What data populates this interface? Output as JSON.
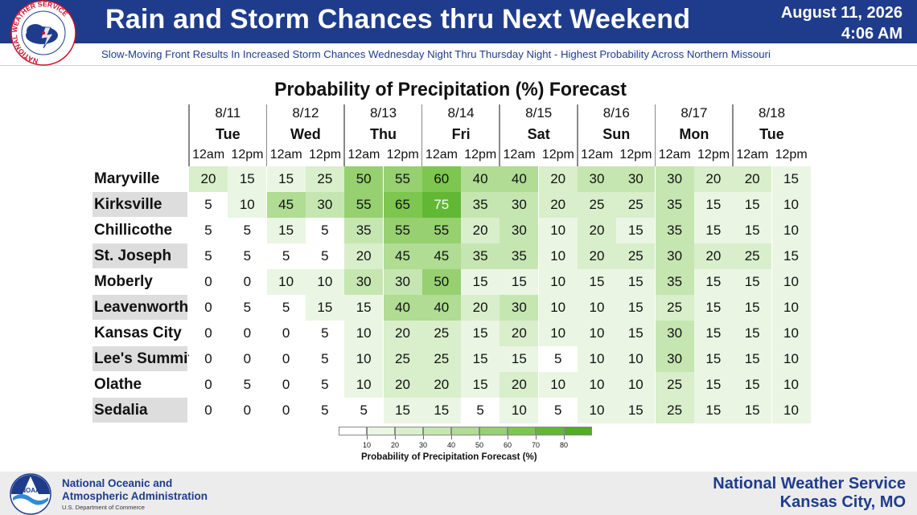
{
  "header": {
    "title": "Rain and Storm Chances thru Next Weekend",
    "date": "August 11, 2026",
    "time": "4:06 AM",
    "subtitle": "Slow-Moving Front Results In Increased Storm Chances Wednesday Night Thru Thursday Night - Highest Probability Across Northern Missouri"
  },
  "logos": {
    "nws_ring_text": "NATIONAL WEATHER SERVICE",
    "noaa_badge": "NOAA"
  },
  "chart_data": {
    "type": "table",
    "title": "Probability of Precipitation (%) Forecast",
    "columns": [
      {
        "date": "8/11",
        "day": "Tue"
      },
      {
        "date": "8/12",
        "day": "Wed"
      },
      {
        "date": "8/13",
        "day": "Thu"
      },
      {
        "date": "8/14",
        "day": "Fri"
      },
      {
        "date": "8/15",
        "day": "Sat"
      },
      {
        "date": "8/16",
        "day": "Sun"
      },
      {
        "date": "8/17",
        "day": "Mon"
      },
      {
        "date": "8/18",
        "day": "Tue"
      }
    ],
    "times": [
      "12am",
      "12pm"
    ],
    "rows": [
      {
        "name": "Maryville",
        "values": [
          20,
          15,
          15,
          25,
          50,
          55,
          60,
          40,
          40,
          20,
          30,
          30,
          30,
          20,
          20,
          15
        ]
      },
      {
        "name": "Kirksville",
        "values": [
          5,
          10,
          45,
          30,
          55,
          65,
          75,
          35,
          30,
          20,
          25,
          25,
          35,
          15,
          15,
          10
        ]
      },
      {
        "name": "Chillicothe",
        "values": [
          5,
          5,
          15,
          5,
          35,
          55,
          55,
          20,
          30,
          10,
          20,
          15,
          35,
          15,
          15,
          10
        ]
      },
      {
        "name": "St. Joseph",
        "values": [
          5,
          5,
          5,
          5,
          20,
          45,
          45,
          35,
          35,
          10,
          20,
          25,
          30,
          20,
          25,
          15
        ]
      },
      {
        "name": "Moberly",
        "values": [
          0,
          0,
          10,
          10,
          30,
          30,
          50,
          15,
          15,
          10,
          15,
          15,
          35,
          15,
          15,
          10
        ]
      },
      {
        "name": "Leavenworth",
        "values": [
          0,
          5,
          5,
          15,
          15,
          40,
          40,
          20,
          30,
          10,
          10,
          15,
          25,
          15,
          15,
          10
        ]
      },
      {
        "name": "Kansas City",
        "values": [
          0,
          0,
          0,
          5,
          10,
          20,
          25,
          15,
          20,
          10,
          10,
          15,
          30,
          15,
          15,
          10
        ]
      },
      {
        "name": "Lee's Summit",
        "values": [
          0,
          0,
          0,
          5,
          10,
          25,
          25,
          15,
          15,
          5,
          10,
          10,
          30,
          15,
          15,
          10
        ]
      },
      {
        "name": "Olathe",
        "values": [
          0,
          5,
          0,
          5,
          10,
          20,
          20,
          15,
          20,
          10,
          10,
          10,
          25,
          15,
          15,
          10
        ]
      },
      {
        "name": "Sedalia",
        "values": [
          0,
          0,
          0,
          5,
          5,
          15,
          15,
          5,
          10,
          5,
          10,
          15,
          25,
          15,
          15,
          10
        ]
      }
    ],
    "scale": {
      "label": "Probability of Precipitation Forecast (%)",
      "breaks": [
        10,
        20,
        30,
        40,
        50,
        60,
        70,
        80
      ],
      "colors": [
        "#ffffff",
        "#eaf6e3",
        "#d9eecb",
        "#c6e6b1",
        "#b0dc93",
        "#96d070",
        "#7dc64f",
        "#62b834",
        "#4fae22"
      ]
    }
  },
  "footer": {
    "agency_line1": "National Oceanic and",
    "agency_line2": "Atmospheric Administration",
    "agency_sub": "U.S. Department of Commerce",
    "office_line1": "National Weather Service",
    "office_line2": "Kansas City, MO"
  }
}
